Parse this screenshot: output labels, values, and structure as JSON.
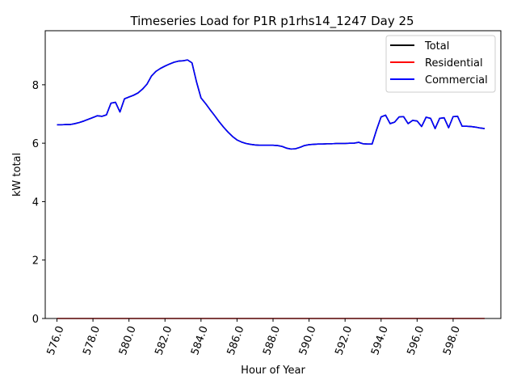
{
  "chart_data": {
    "type": "line",
    "title": "Timeseries Load for P1R p1rhs14_1247  Day 25",
    "xlabel": "Hour of Year",
    "ylabel": "kW total",
    "xlim": [
      575.35,
      600.65
    ],
    "ylim": [
      0,
      9.85
    ],
    "x_ticks": [
      576,
      578,
      580,
      582,
      584,
      586,
      588,
      590,
      592,
      594,
      596,
      598
    ],
    "x_tick_labels": [
      "576.0",
      "578.0",
      "580.0",
      "582.0",
      "584.0",
      "586.0",
      "588.0",
      "590.0",
      "592.0",
      "594.0",
      "596.0",
      "598.0"
    ],
    "y_ticks": [
      0,
      2,
      4,
      6,
      8
    ],
    "y_tick_labels": [
      "0",
      "2",
      "4",
      "6",
      "8"
    ],
    "grid": false,
    "legend_position": "top-right",
    "series": [
      {
        "name": "Total",
        "color": "#000000",
        "x": [
          576.0,
          576.25,
          576.5,
          576.75,
          577.0,
          577.25,
          577.5,
          577.75,
          578.0,
          578.25,
          578.5,
          578.75,
          579.0,
          579.25,
          579.5,
          579.75,
          580.0,
          580.25,
          580.5,
          580.75,
          581.0,
          581.25,
          581.5,
          581.75,
          582.0,
          582.25,
          582.5,
          582.75,
          583.0,
          583.25,
          583.5,
          583.75,
          584.0,
          584.25,
          584.5,
          584.75,
          585.0,
          585.25,
          585.5,
          585.75,
          586.0,
          586.25,
          586.5,
          586.75,
          587.0,
          587.25,
          587.5,
          587.75,
          588.0,
          588.25,
          588.5,
          588.75,
          589.0,
          589.25,
          589.5,
          589.75,
          590.0,
          590.25,
          590.5,
          590.75,
          591.0,
          591.25,
          591.5,
          591.75,
          592.0,
          592.25,
          592.5,
          592.75,
          593.0,
          593.25,
          593.5,
          593.75,
          594.0,
          594.25,
          594.5,
          594.75,
          595.0,
          595.25,
          595.5,
          595.75,
          596.0,
          596.25,
          596.5,
          596.75,
          597.0,
          597.25,
          597.5,
          597.75,
          598.0,
          598.25,
          598.5,
          598.75,
          599.0,
          599.25,
          599.5,
          599.75
        ],
        "values": [
          6.63,
          6.63,
          6.64,
          6.64,
          6.67,
          6.71,
          6.76,
          6.82,
          6.88,
          6.94,
          6.92,
          6.97,
          7.37,
          7.4,
          7.07,
          7.52,
          7.58,
          7.64,
          7.72,
          7.85,
          8.02,
          8.3,
          8.46,
          8.56,
          8.64,
          8.71,
          8.77,
          8.81,
          8.82,
          8.85,
          8.75,
          8.1,
          7.55,
          7.36,
          7.15,
          6.95,
          6.74,
          6.55,
          6.38,
          6.23,
          6.11,
          6.04,
          5.99,
          5.96,
          5.94,
          5.93,
          5.93,
          5.93,
          5.93,
          5.92,
          5.89,
          5.83,
          5.8,
          5.81,
          5.86,
          5.92,
          5.95,
          5.96,
          5.97,
          5.97,
          5.98,
          5.98,
          5.99,
          5.99,
          5.99,
          6.0,
          6.0,
          6.03,
          5.98,
          5.97,
          5.97,
          6.46,
          6.9,
          6.96,
          6.67,
          6.72,
          6.9,
          6.91,
          6.67,
          6.78,
          6.76,
          6.57,
          6.89,
          6.85,
          6.5,
          6.85,
          6.87,
          6.53,
          6.91,
          6.92,
          6.58,
          6.58,
          6.57,
          6.55,
          6.52,
          6.5
        ]
      },
      {
        "name": "Residential",
        "color": "#ff0000",
        "x": [
          576.0,
          599.75
        ],
        "values": [
          0.0,
          0.0
        ]
      },
      {
        "name": "Commercial",
        "color": "#0000ff",
        "x": [
          576.0,
          576.25,
          576.5,
          576.75,
          577.0,
          577.25,
          577.5,
          577.75,
          578.0,
          578.25,
          578.5,
          578.75,
          579.0,
          579.25,
          579.5,
          579.75,
          580.0,
          580.25,
          580.5,
          580.75,
          581.0,
          581.25,
          581.5,
          581.75,
          582.0,
          582.25,
          582.5,
          582.75,
          583.0,
          583.25,
          583.5,
          583.75,
          584.0,
          584.25,
          584.5,
          584.75,
          585.0,
          585.25,
          585.5,
          585.75,
          586.0,
          586.25,
          586.5,
          586.75,
          587.0,
          587.25,
          587.5,
          587.75,
          588.0,
          588.25,
          588.5,
          588.75,
          589.0,
          589.25,
          589.5,
          589.75,
          590.0,
          590.25,
          590.5,
          590.75,
          591.0,
          591.25,
          591.5,
          591.75,
          592.0,
          592.25,
          592.5,
          592.75,
          593.0,
          593.25,
          593.5,
          593.75,
          594.0,
          594.25,
          594.5,
          594.75,
          595.0,
          595.25,
          595.5,
          595.75,
          596.0,
          596.25,
          596.5,
          596.75,
          597.0,
          597.25,
          597.5,
          597.75,
          598.0,
          598.25,
          598.5,
          598.75,
          599.0,
          599.25,
          599.5,
          599.75
        ],
        "values": [
          6.63,
          6.63,
          6.64,
          6.64,
          6.67,
          6.71,
          6.76,
          6.82,
          6.88,
          6.94,
          6.92,
          6.97,
          7.37,
          7.4,
          7.07,
          7.52,
          7.58,
          7.64,
          7.72,
          7.85,
          8.02,
          8.3,
          8.46,
          8.56,
          8.64,
          8.71,
          8.77,
          8.81,
          8.82,
          8.85,
          8.75,
          8.1,
          7.55,
          7.36,
          7.15,
          6.95,
          6.74,
          6.55,
          6.38,
          6.23,
          6.11,
          6.04,
          5.99,
          5.96,
          5.94,
          5.93,
          5.93,
          5.93,
          5.93,
          5.92,
          5.89,
          5.83,
          5.8,
          5.81,
          5.86,
          5.92,
          5.95,
          5.96,
          5.97,
          5.97,
          5.98,
          5.98,
          5.99,
          5.99,
          5.99,
          6.0,
          6.0,
          6.03,
          5.98,
          5.97,
          5.97,
          6.46,
          6.9,
          6.96,
          6.67,
          6.72,
          6.9,
          6.91,
          6.67,
          6.78,
          6.76,
          6.57,
          6.89,
          6.85,
          6.5,
          6.85,
          6.87,
          6.53,
          6.91,
          6.92,
          6.58,
          6.58,
          6.57,
          6.55,
          6.52,
          6.5
        ]
      }
    ]
  }
}
